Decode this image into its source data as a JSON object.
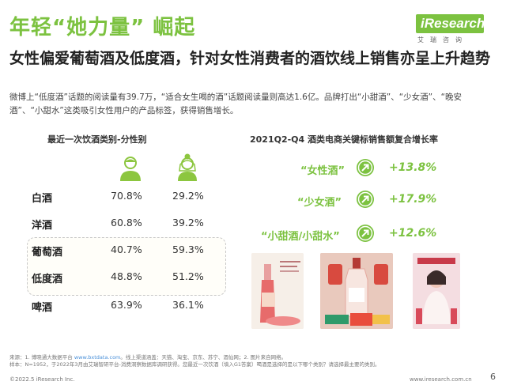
{
  "header": {
    "title": "年轻“她力量” 崛起",
    "logo_text": "iResearch",
    "logo_sub": "艾瑞咨询"
  },
  "headline": "女性偏爱葡萄酒及低度酒，针对女性消费者的酒饮线上销售亦呈上升趋势",
  "description": "微博上“低度酒”话题的阅读量有39.7万，“适合女生喝的酒”话题阅读量则高达1.6亿。品牌打出“小甜酒”、“少女酒”、“晚安酒”、“小甜水”这类吸引女性用户的产品标签，获得销售增长。",
  "left_panel": {
    "title": "最近一次饮酒类别-分性别",
    "rows": [
      {
        "category": "白酒",
        "male": "70.8%",
        "female": "29.2%"
      },
      {
        "category": "洋酒",
        "male": "60.8%",
        "female": "39.2%"
      },
      {
        "category": "葡萄酒",
        "male": "40.7%",
        "female": "59.3%"
      },
      {
        "category": "低度酒",
        "male": "48.8%",
        "female": "51.2%"
      },
      {
        "category": "啤酒",
        "male": "63.9%",
        "female": "36.1%"
      }
    ]
  },
  "right_panel": {
    "title": "2021Q2-Q4 酒类电商关键标销售额复合增长率",
    "items": [
      {
        "keyword": "“女性酒”",
        "growth": "+13.8%"
      },
      {
        "keyword": "“少女酒”",
        "growth": "+17.9%"
      },
      {
        "keyword": "“小甜酒/小甜水”",
        "growth": "+12.6%"
      }
    ]
  },
  "footer": {
    "source_prefix": "来源：1. 博晓通大数据平台 ",
    "source_link": "www.bxtdata.com",
    "source_suffix": "。线上渠道涵盖：天猫、淘宝、京东、苏宁、酒仙网；2. 图片来自网络。",
    "sample": "样本：N=1952，于2022年3月由艾瑞智研平台-消费洞察数据库调研获得。您最近一次饮酒（填入G1答案）喝酒是选择的是以下哪个类别？请选择最主要的类别。",
    "copyright": "©2022.5 iResearch Inc.",
    "website": "www.iresearch.com.cn",
    "page": "6"
  },
  "colors": {
    "accent": "#7cc240",
    "male_icon": "#8cc63f",
    "female_icon": "#8cc63f"
  }
}
